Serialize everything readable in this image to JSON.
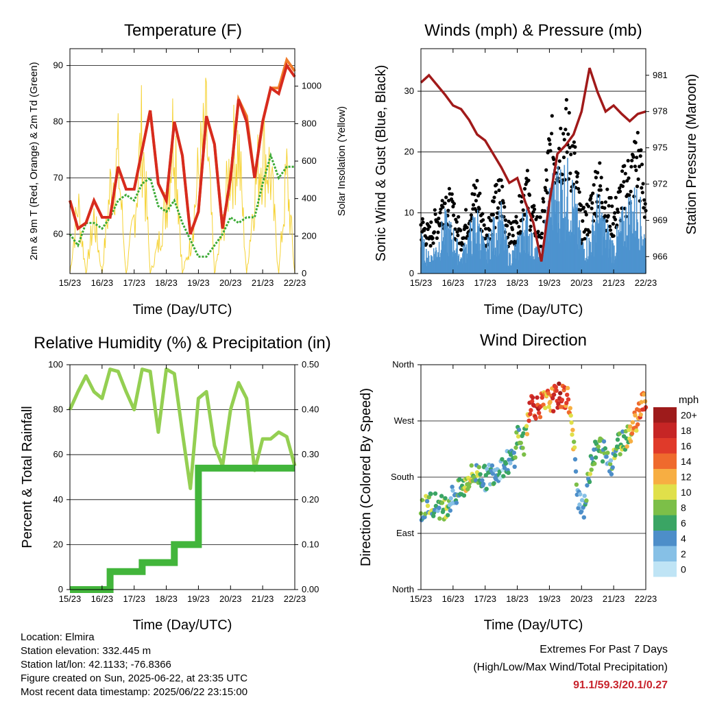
{
  "x_ticks": [
    "15/23",
    "16/23",
    "17/23",
    "18/23",
    "19/23",
    "20/23",
    "21/23",
    "22/23"
  ],
  "x_label": "Time (Day/UTC)",
  "colors": {
    "temp2m": "#d72b1e",
    "temp9m": "#f07b2a",
    "dewpoint": "#3aaa35",
    "solar": "#f5d233",
    "gust": "#000000",
    "wind": "#4d93cf",
    "pressure": "#a11a1a",
    "rh": "#94cf52",
    "precip": "#42b53b"
  },
  "panels": {
    "temperature": {
      "title": "Temperature (F)",
      "ylabel_left": "2m & 9m T (Red, Orange) & 2m Td (Green)",
      "ylabel_right": "Solar Insolation (Yellow)",
      "left_ticks": [
        "60",
        "70",
        "80",
        "90"
      ],
      "right_ticks": [
        "0",
        "200",
        "400",
        "600",
        "800",
        "1000"
      ]
    },
    "winds": {
      "title": "Winds (mph) & Pressure (mb)",
      "ylabel_left": "Sonic Wind & Gust (Blue, Black)",
      "ylabel_right": "Station Pressure (Maroon)",
      "left_ticks": [
        "0",
        "10",
        "20",
        "30"
      ],
      "right_ticks": [
        "966",
        "969",
        "972",
        "975",
        "978",
        "981"
      ]
    },
    "humidity": {
      "title": "Relative Humidity (%) & Precipitation (in)",
      "ylabel_left": "Percent & Total Rainfall",
      "left_ticks": [
        "0",
        "20",
        "40",
        "60",
        "80",
        "100"
      ],
      "right_ticks": [
        "0.00",
        "0.10",
        "0.20",
        "0.30",
        "0.40",
        "0.50"
      ]
    },
    "direction": {
      "title": "Wind Direction",
      "ylabel_left": "Direction (Colored By Speed)",
      "left_ticks": [
        "North",
        "East",
        "South",
        "West",
        "North"
      ],
      "colorbar_title": "mph",
      "colorbar_labels": [
        "0",
        "2",
        "4",
        "6",
        "8",
        "10",
        "12",
        "14",
        "16",
        "18",
        "20+"
      ],
      "colorbar_colors": [
        "#bfe4f5",
        "#86c0e6",
        "#4d8ec9",
        "#3aa564",
        "#7cbf48",
        "#e0e04a",
        "#f7ae42",
        "#ef6a2d",
        "#e03a2a",
        "#c62525",
        "#9e1b1b"
      ]
    }
  },
  "chart_data": [
    {
      "type": "line",
      "title": "Temperature (F)",
      "xlabel": "Time (Day/UTC)",
      "ylabel": "2m & 9m T (Red, Orange) & 2m Td (Green)",
      "ylabel_right": "Solar Insolation (Yellow)",
      "xlim": [
        0,
        7
      ],
      "ylim": [
        53,
        93
      ],
      "ylim_right": [
        0,
        1200
      ],
      "x": [
        0,
        0.25,
        0.5,
        0.75,
        1,
        1.25,
        1.5,
        1.75,
        2,
        2.25,
        2.5,
        2.75,
        3,
        3.25,
        3.5,
        3.75,
        4,
        4.25,
        4.5,
        4.75,
        5,
        5.25,
        5.5,
        5.75,
        6,
        6.25,
        6.5,
        6.75,
        7
      ],
      "series": [
        {
          "name": "2m T",
          "axis": "left",
          "values": [
            66,
            61,
            62,
            66,
            63,
            63,
            72,
            68,
            68,
            75,
            82,
            69,
            66,
            80,
            74,
            60,
            64,
            81,
            76,
            61,
            70,
            84,
            80,
            70,
            80,
            86,
            85,
            90,
            88
          ]
        },
        {
          "name": "9m T",
          "axis": "left",
          "values": [
            66,
            61,
            62,
            66,
            63,
            63,
            72,
            68,
            68,
            75,
            82,
            69,
            66,
            80,
            74,
            60,
            64,
            81,
            76,
            61,
            70,
            84,
            81,
            70,
            80,
            86,
            86,
            91,
            89
          ]
        },
        {
          "name": "2m Td",
          "axis": "left",
          "values": [
            60,
            58,
            62,
            62,
            61,
            63,
            66,
            67,
            66,
            69,
            70,
            65,
            64,
            66,
            62,
            59,
            56,
            56,
            58,
            60,
            63,
            62,
            63,
            63,
            69,
            74,
            70,
            72,
            72
          ]
        },
        {
          "name": "Solar Insolation",
          "axis": "right",
          "values": [
            0,
            500,
            0,
            400,
            0,
            600,
            800,
            0,
            400,
            1000,
            0,
            200,
            500,
            1100,
            0,
            200,
            700,
            1000,
            0,
            300,
            800,
            900,
            0,
            600,
            900,
            700,
            0,
            700,
            0
          ]
        }
      ]
    },
    {
      "type": "line",
      "title": "Winds (mph) & Pressure (mb)",
      "xlabel": "Time (Day/UTC)",
      "ylabel": "Sonic Wind & Gust (Blue, Black)",
      "ylabel_right": "Station Pressure (Maroon)",
      "xlim": [
        0,
        7
      ],
      "ylim": [
        0,
        37
      ],
      "ylim_right": [
        964.6,
        983.2
      ],
      "x": [
        0,
        0.25,
        0.5,
        0.75,
        1,
        1.25,
        1.5,
        1.75,
        2,
        2.25,
        2.5,
        2.75,
        3,
        3.25,
        3.5,
        3.75,
        4,
        4.25,
        4.5,
        4.75,
        5,
        5.25,
        5.5,
        5.75,
        6,
        6.25,
        6.5,
        6.75,
        7
      ],
      "series": [
        {
          "name": "Sonic Wind",
          "axis": "left",
          "values": [
            6,
            3,
            5,
            9,
            7,
            3,
            7,
            10,
            4,
            8,
            10,
            3,
            5,
            11,
            5,
            3,
            14,
            16,
            17,
            14,
            5,
            6,
            12,
            8,
            5,
            9,
            12,
            13,
            6
          ]
        },
        {
          "name": "Gust",
          "axis": "left",
          "values": [
            9,
            7,
            10,
            14,
            11,
            7,
            11,
            15,
            7,
            12,
            15,
            7,
            9,
            17,
            10,
            8,
            22,
            24,
            26,
            22,
            9,
            11,
            18,
            13,
            10,
            15,
            18,
            22,
            13
          ]
        },
        {
          "name": "Station Pressure",
          "axis": "right",
          "values": [
            980.4,
            981.0,
            980.2,
            979.4,
            978.5,
            978.2,
            977.3,
            976.1,
            975.6,
            974.5,
            973.4,
            972.1,
            972.5,
            970.5,
            968.8,
            965.6,
            970.5,
            974.5,
            975.2,
            976.1,
            978.0,
            981.6,
            979.6,
            978.0,
            978.5,
            977.8,
            977.2,
            977.8,
            978.0
          ]
        }
      ]
    },
    {
      "type": "line",
      "title": "Relative Humidity (%) & Precipitation (in)",
      "xlabel": "Time (Day/UTC)",
      "ylabel": "Percent & Total Rainfall",
      "xlim": [
        0,
        7
      ],
      "ylim": [
        0,
        100
      ],
      "ylim_right": [
        0,
        0.5
      ],
      "x": [
        0,
        0.25,
        0.5,
        0.75,
        1,
        1.25,
        1.5,
        1.75,
        2,
        2.25,
        2.5,
        2.75,
        3,
        3.25,
        3.5,
        3.75,
        4,
        4.25,
        4.5,
        4.75,
        5,
        5.25,
        5.5,
        5.75,
        6,
        6.25,
        6.5,
        6.75,
        7
      ],
      "series": [
        {
          "name": "Relative Humidity",
          "axis": "left",
          "values": [
            80,
            88,
            95,
            88,
            85,
            98,
            97,
            88,
            80,
            98,
            97,
            70,
            98,
            96,
            70,
            45,
            85,
            88,
            64,
            55,
            80,
            92,
            85,
            53,
            67,
            67,
            70,
            68,
            55
          ]
        },
        {
          "name": "Total Precipitation",
          "axis": "right",
          "values": [
            0,
            0,
            0,
            0,
            0,
            0.04,
            0.04,
            0.04,
            0.04,
            0.06,
            0.06,
            0.06,
            0.06,
            0.1,
            0.1,
            0.1,
            0.27,
            0.27,
            0.27,
            0.27,
            0.27,
            0.27,
            0.27,
            0.27,
            0.27,
            0.27,
            0.27,
            0.27,
            0.27
          ]
        }
      ]
    },
    {
      "type": "scatter",
      "title": "Wind Direction",
      "xlabel": "Time (Day/UTC)",
      "ylabel": "Direction (Colored By Speed)",
      "xlim": [
        0,
        7
      ],
      "ylim": [
        0,
        360
      ],
      "y_ticks": [
        [
          "North",
          0
        ],
        [
          "East",
          90
        ],
        [
          "South",
          180
        ],
        [
          "West",
          270
        ],
        [
          "North",
          360
        ]
      ],
      "colorbar_units": "mph",
      "x": [
        0.1,
        0.3,
        0.5,
        0.7,
        1.0,
        1.3,
        1.5,
        1.8,
        2.0,
        2.3,
        2.6,
        2.9,
        3.0,
        3.2,
        3.4,
        3.6,
        3.9,
        4.1,
        4.3,
        4.6,
        4.9,
        5.1,
        5.3,
        5.6,
        5.9,
        6.1,
        6.3,
        6.6,
        6.9
      ],
      "y": [
        128,
        140,
        135,
        130,
        150,
        160,
        180,
        185,
        178,
        190,
        200,
        210,
        250,
        230,
        300,
        292,
        300,
        305,
        310,
        306,
        150,
        130,
        210,
        230,
        200,
        230,
        240,
        260,
        300
      ],
      "speed": [
        6,
        8,
        4,
        9,
        3,
        8,
        9,
        6,
        5,
        4,
        3,
        5,
        8,
        6,
        16,
        17,
        12,
        15,
        18,
        14,
        3,
        4,
        8,
        6,
        5,
        8,
        7,
        12,
        14
      ]
    }
  ],
  "footer": {
    "location": "Location: Elmira",
    "elevation": "Station elevation: 332.445 m",
    "latlon": "Station lat/lon: 42.1133; -76.8366",
    "created": "Figure created on Sun, 2025-06-22, at 23:35 UTC",
    "latest": "Most recent data timestamp: 2025/06/22 23:15:00"
  },
  "extremes": {
    "title": "Extremes For Past 7 Days",
    "subtitle": "(High/Low/Max Wind/Total Precipitation)",
    "values": "91.1/59.3/20.1/0.27"
  }
}
